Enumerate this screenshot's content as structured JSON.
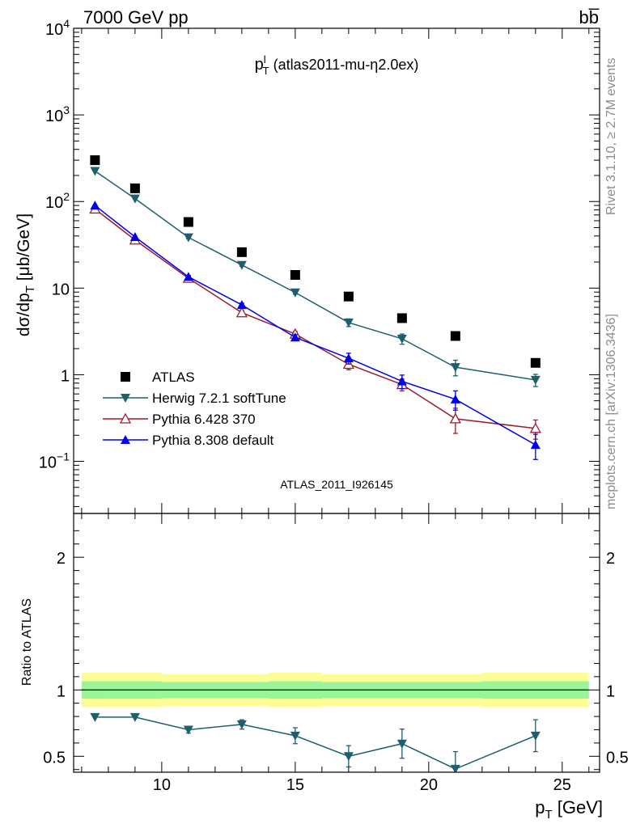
{
  "header": {
    "left": "7000 GeV pp",
    "right": "bb̅"
  },
  "side_labels": {
    "rivet": "Rivet 3.1.10, ≥ 2.7M events",
    "mcplots": "mcplots.cern.ch [arXiv:1306.3436]"
  },
  "watermark": "ATLAS_2011_I926145",
  "chart_data": [
    {
      "type": "scatter",
      "panel": "main",
      "title_main": "p",
      "title_sup": "l",
      "title_sub": "T",
      "title_rest": "(atlas2011-mu-η2.0ex)",
      "ylabel": "dσ/dp_T [μb/GeV]",
      "yscale": "log",
      "ylim": [
        0.025,
        10000
      ],
      "xlim": [
        6.7,
        26.4
      ],
      "grid": false,
      "legend_position": "bottom-left",
      "y_ticks": [
        {
          "value": 10000,
          "base": "10",
          "exp": "4"
        },
        {
          "value": 1000,
          "base": "10",
          "exp": "3"
        },
        {
          "value": 100,
          "base": "10",
          "exp": "2"
        },
        {
          "value": 10,
          "base": "10",
          "exp": ""
        },
        {
          "value": 1,
          "base": "1",
          "exp": ""
        },
        {
          "value": 0.1,
          "base": "10",
          "exp": "−1"
        }
      ],
      "series": [
        {
          "name": "ATLAS",
          "color": "#000000",
          "marker": "square",
          "line": false,
          "x": [
            7.5,
            9,
            11,
            13,
            15,
            17,
            19,
            21,
            24
          ],
          "y": [
            300,
            142,
            58,
            26,
            14.2,
            8.0,
            4.5,
            2.8,
            1.37
          ],
          "err": [
            0,
            0,
            0,
            0,
            0,
            0,
            0,
            0,
            0
          ]
        },
        {
          "name": "Herwig 7.2.1 softTune",
          "color": "#1e5f6e",
          "marker": "triangle-down",
          "line": true,
          "x": [
            7.5,
            9,
            11,
            13,
            15,
            17,
            19,
            21,
            24
          ],
          "y": [
            225,
            108,
            38.5,
            18.5,
            8.9,
            4.0,
            2.6,
            1.22,
            0.87
          ],
          "err": [
            0,
            0,
            1.2,
            0.6,
            0.4,
            0.4,
            0.35,
            0.25,
            0.14
          ]
        },
        {
          "name": "Pythia 6.428 370",
          "color": "#9b1c2e",
          "marker": "triangle-up-open",
          "line": true,
          "x": [
            7.5,
            9,
            11,
            13,
            15,
            17,
            19,
            21,
            24
          ],
          "y": [
            82,
            36,
            13,
            5.2,
            2.95,
            1.32,
            0.77,
            0.31,
            0.24
          ],
          "err": [
            0,
            0,
            0.5,
            0.3,
            0.2,
            0.18,
            0.12,
            0.1,
            0.06
          ]
        },
        {
          "name": "Pythia 8.308 default",
          "color": "#0000ee",
          "marker": "triangle-up",
          "line": true,
          "x": [
            7.5,
            9,
            11,
            13,
            15,
            17,
            19,
            21,
            24
          ],
          "y": [
            90,
            39,
            13.5,
            6.4,
            2.7,
            1.55,
            0.84,
            0.52,
            0.155
          ],
          "err": [
            0,
            0,
            0.5,
            0.3,
            0.2,
            0.22,
            0.15,
            0.13,
            0.05
          ]
        }
      ]
    },
    {
      "type": "line",
      "panel": "ratio",
      "ylabel": "Ratio to ATLAS",
      "xlabel_main": "p",
      "xlabel_sub": "T",
      "xlabel_rest": "[GeV]",
      "xlim": [
        6.7,
        26.4
      ],
      "ylim": [
        0.38,
        2.33
      ],
      "x_ticks": [
        10,
        15,
        20,
        25
      ],
      "y_ticks": [
        0.5,
        1,
        2
      ],
      "reference_line": 1,
      "bands": {
        "bins": [
          [
            7,
            8
          ],
          [
            8,
            10
          ],
          [
            10,
            12
          ],
          [
            12,
            14
          ],
          [
            14,
            16
          ],
          [
            16,
            18
          ],
          [
            18,
            20
          ],
          [
            20,
            22
          ],
          [
            22,
            26
          ]
        ],
        "inner": [
          0.065,
          0.065,
          0.06,
          0.06,
          0.065,
          0.06,
          0.06,
          0.06,
          0.065
        ],
        "outer": [
          0.13,
          0.13,
          0.12,
          0.12,
          0.13,
          0.12,
          0.12,
          0.12,
          0.13
        ],
        "inner_color": "#98f598",
        "outer_color": "#fdfd98"
      },
      "series": [
        {
          "name": "Herwig 7.2.1 softTune",
          "color": "#1e5f6e",
          "marker": "triangle-down",
          "x": [
            7.5,
            9,
            11,
            13,
            15,
            17,
            19,
            21,
            24
          ],
          "y": [
            0.795,
            0.795,
            0.7,
            0.74,
            0.655,
            0.5,
            0.595,
            0.405,
            0.655
          ],
          "err": [
            0,
            0,
            0.025,
            0.035,
            0.06,
            0.08,
            0.11,
            0.13,
            0.12
          ]
        }
      ]
    }
  ]
}
